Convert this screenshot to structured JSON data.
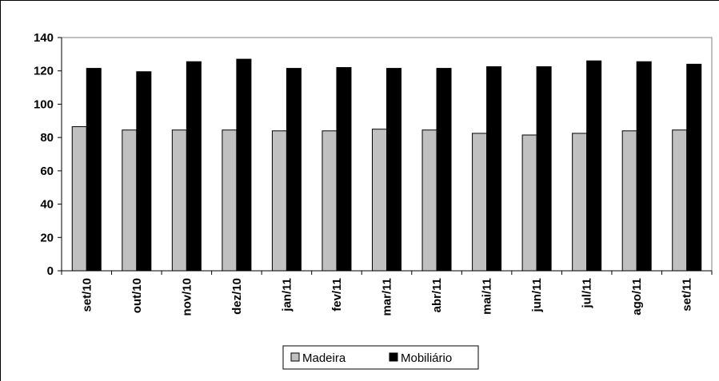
{
  "chart_data": {
    "type": "bar",
    "title": "",
    "xlabel": "",
    "ylabel": "",
    "categories": [
      "set/10",
      "out/10",
      "nov/10",
      "dez/10",
      "jan/11",
      "fev/11",
      "mar/11",
      "abr/11",
      "mai/11",
      "jun/11",
      "jul/11",
      "ago/11",
      "set/11"
    ],
    "series": [
      {
        "name": "Madeira",
        "color": "#c0c0c0",
        "values": [
          86.5,
          84.5,
          84.5,
          84.5,
          84,
          84,
          85,
          84.5,
          82.5,
          81.5,
          82.5,
          84,
          84.5
        ]
      },
      {
        "name": "Mobiliário",
        "color": "#000000",
        "values": [
          121.5,
          119.5,
          125.5,
          127,
          121.5,
          122,
          121.5,
          121.5,
          122.5,
          122.5,
          126,
          125.5,
          124
        ]
      }
    ],
    "ylim": [
      0,
      140
    ],
    "yticks": [
      "0",
      "20",
      "40",
      "60",
      "80",
      "100",
      "120",
      "140"
    ],
    "grid": false,
    "legend": "bottom-center"
  }
}
